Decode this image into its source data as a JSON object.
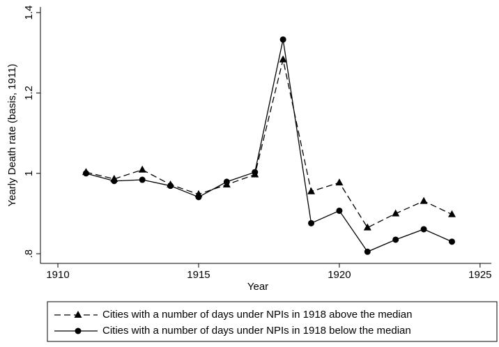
{
  "chart_data": {
    "type": "line",
    "x_label": "Year",
    "y_label": "Yearly Death rate (basis, 1911)",
    "x": [
      1911,
      1912,
      1913,
      1914,
      1915,
      1916,
      1917,
      1918,
      1919,
      1920,
      1921,
      1922,
      1923,
      1924
    ],
    "series": [
      {
        "name": "Cities with a number of days under NPIs in 1918 above the median",
        "color": "#000000",
        "line_style": "dashed",
        "marker": "triangle",
        "values": [
          1.003,
          0.986,
          1.009,
          0.972,
          0.948,
          0.972,
          0.997,
          1.283,
          0.955,
          0.977,
          0.865,
          0.9,
          0.931,
          0.898
        ]
      },
      {
        "name": "Cities with a number of days under NPIs in 1918 below the median",
        "color": "#000000",
        "line_style": "solid",
        "marker": "circle",
        "values": [
          1.0,
          0.981,
          0.984,
          0.969,
          0.941,
          0.979,
          1.003,
          1.333,
          0.876,
          0.907,
          0.805,
          0.835,
          0.861,
          0.83
        ]
      }
    ],
    "xlim": [
      1909.38,
      1925.4
    ],
    "ylim": [
      0.776,
      1.414
    ],
    "xticks": [
      1910,
      1915,
      1920,
      1925
    ],
    "yticks": [
      {
        "value": 0.8,
        "label": ".8"
      },
      1,
      1.2,
      1.4
    ],
    "legend_position": "bottom"
  }
}
